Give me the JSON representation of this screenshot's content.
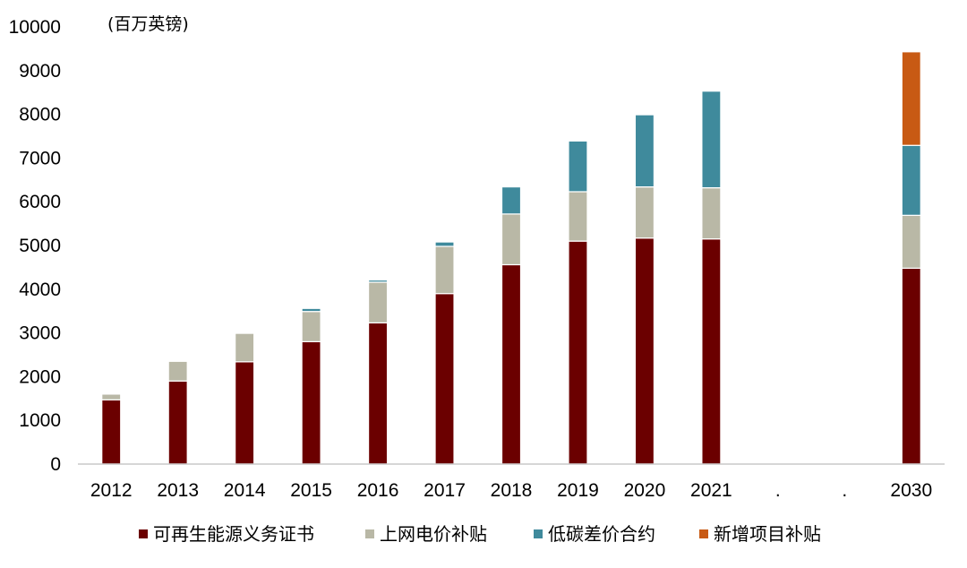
{
  "chart_data": {
    "type": "bar",
    "stacked": true,
    "unit_label": "(百万英镑)",
    "categories": [
      "2012",
      "2013",
      "2014",
      "2015",
      "2016",
      "2017",
      "2018",
      "2019",
      "2020",
      "2021",
      ".",
      ".",
      "2030"
    ],
    "ylim": [
      0,
      10000
    ],
    "yticks": [
      0,
      1000,
      2000,
      3000,
      4000,
      5000,
      6000,
      7000,
      8000,
      9000,
      10000
    ],
    "grid": false,
    "legend_position": "bottom",
    "series": [
      {
        "name": "可再生能源义务证书",
        "color": "#6b0000",
        "values": [
          1470,
          1900,
          2340,
          2800,
          3230,
          3900,
          4560,
          5100,
          5170,
          5150,
          null,
          null,
          4480
        ]
      },
      {
        "name": "上网电价补贴",
        "color": "#b9b8a6",
        "values": [
          130,
          450,
          650,
          690,
          930,
          1080,
          1160,
          1130,
          1170,
          1170,
          null,
          null,
          1210
        ]
      },
      {
        "name": "低碳差价合约",
        "color": "#3f8a9c",
        "values": [
          0,
          0,
          0,
          70,
          50,
          100,
          620,
          1160,
          1650,
          2210,
          null,
          null,
          1600
        ]
      },
      {
        "name": "新增项目补贴",
        "color": "#c85a14",
        "values": [
          0,
          0,
          0,
          0,
          0,
          0,
          0,
          0,
          0,
          0,
          null,
          null,
          2140
        ]
      }
    ]
  }
}
